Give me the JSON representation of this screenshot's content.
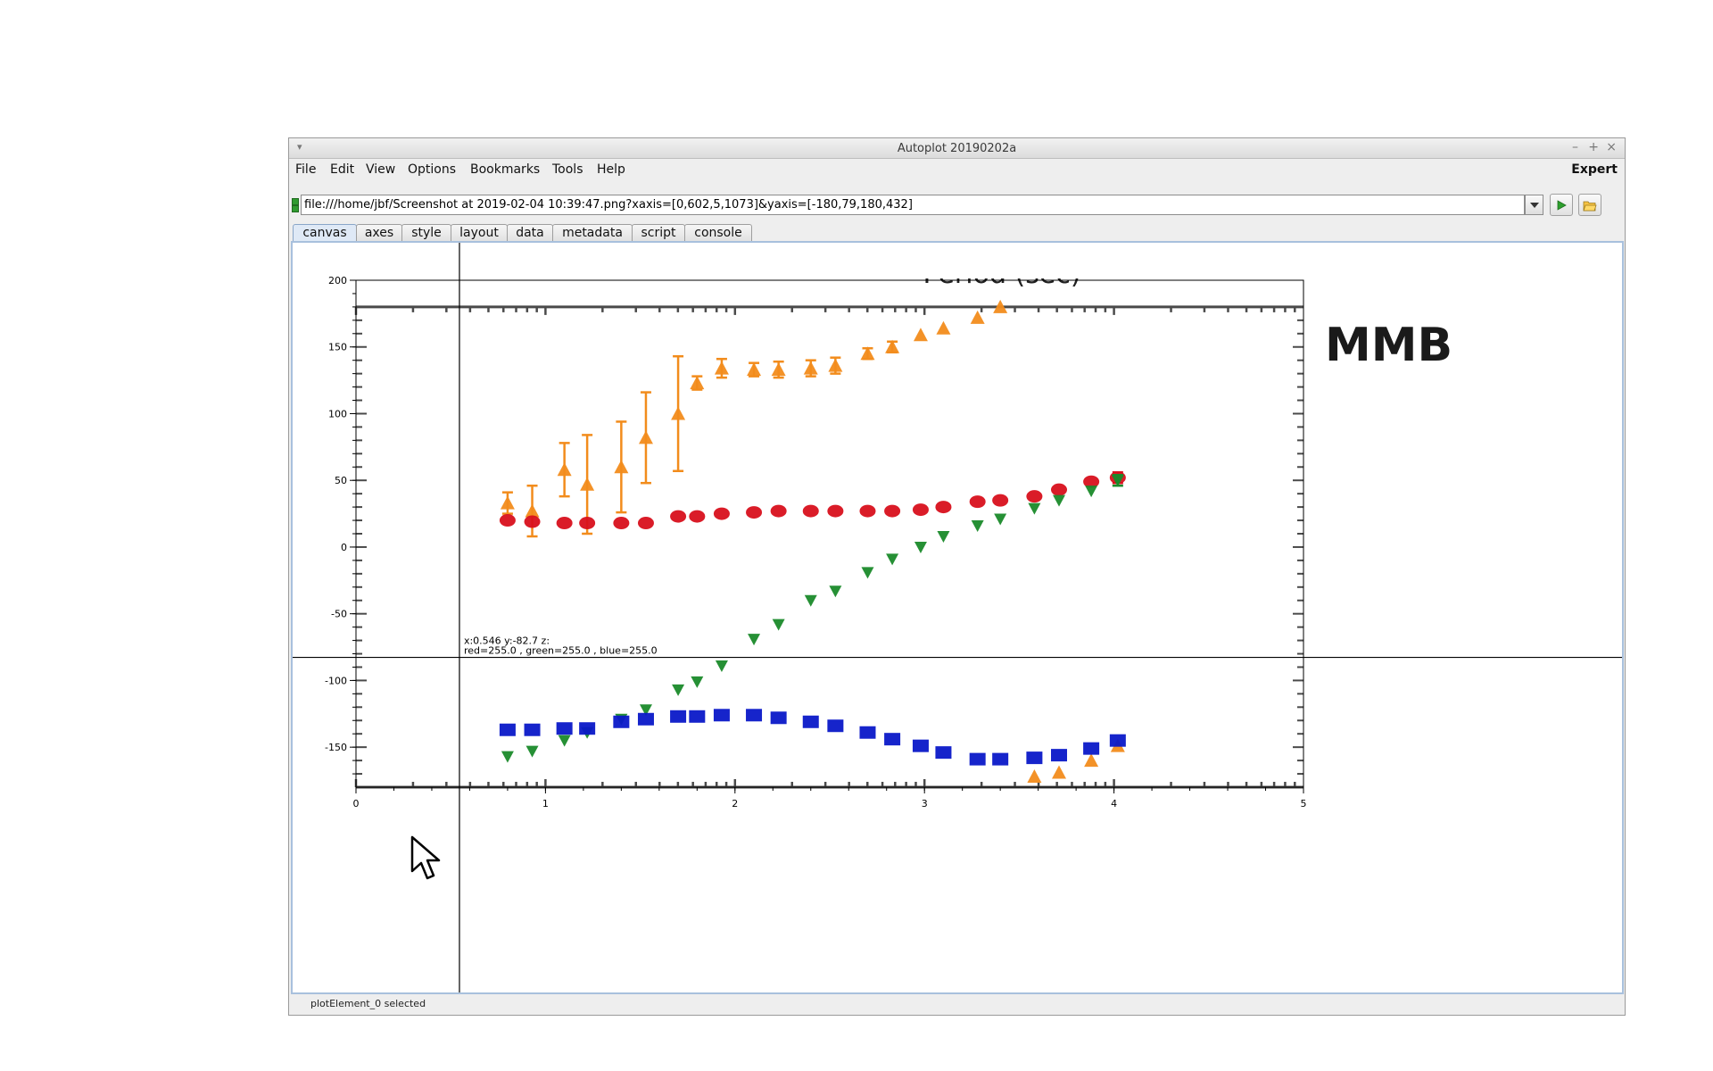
{
  "window": {
    "title": "Autoplot 20190202a"
  },
  "menubar": {
    "items": [
      "File",
      "Edit",
      "View",
      "Options",
      "Bookmarks",
      "Tools",
      "Help"
    ],
    "expert_label": "Expert"
  },
  "address": {
    "uri": "file:///home/jbf/Screenshot at 2019-02-04 10:39:47.png?xaxis=[0,602,5,1073]&yaxis=[-180,79,180,432]"
  },
  "tabs": [
    "canvas",
    "axes",
    "style",
    "layout",
    "data",
    "metadata",
    "script",
    "console"
  ],
  "active_tab": "canvas",
  "readout": {
    "line1": "x:0.546  y:-82.7  z:",
    "line2": "red=255.0 , green=255.0 , blue=255.0"
  },
  "status": {
    "text": "plotElement_0 selected"
  },
  "image_overlay": {
    "label": "MMB",
    "top_title_fragment": "Period (sec)"
  },
  "icons": [
    "app-menu-icon",
    "minimize-icon",
    "maximize-icon",
    "close-icon",
    "dropdown-arrow-icon",
    "play-icon",
    "open-folder-icon",
    "mouse-pointer-icon"
  ],
  "chart_data": {
    "type": "scatter",
    "xlim": [
      0,
      5
    ],
    "ylim": [
      -180,
      200
    ],
    "x_ticks": [
      "0",
      "1",
      "2",
      "3",
      "4",
      "5"
    ],
    "y_ticks": [
      "-150",
      "-100",
      "-50",
      "0",
      "50",
      "100",
      "150",
      "200"
    ],
    "crosshair": {
      "x": 0.546,
      "y": -82.7
    },
    "series": [
      {
        "color": "#f28c1c",
        "marker": "triangle-up",
        "x": [
          0.8,
          0.93,
          1.1,
          1.22,
          1.4,
          1.53,
          1.7,
          1.8,
          1.93,
          2.1,
          2.23,
          2.4,
          2.53,
          2.7,
          2.83,
          2.98,
          3.1,
          3.28,
          3.4,
          3.58,
          3.71,
          3.88,
          4.02
        ],
        "y": [
          33,
          27,
          58,
          47,
          60,
          82,
          100,
          123,
          134,
          133,
          133,
          134,
          136,
          145,
          150,
          159,
          164,
          172,
          180,
          -172,
          -169,
          -160,
          -149
        ],
        "err": [
          8,
          19,
          20,
          37,
          34,
          34,
          43,
          5,
          7,
          5,
          6,
          6,
          6,
          4,
          4,
          3,
          3,
          3,
          2,
          2,
          3,
          3,
          2
        ]
      },
      {
        "color": "#d8101c",
        "marker": "circle",
        "x": [
          0.8,
          0.93,
          1.1,
          1.22,
          1.4,
          1.53,
          1.7,
          1.8,
          1.93,
          2.1,
          2.23,
          2.4,
          2.53,
          2.7,
          2.83,
          2.98,
          3.1,
          3.28,
          3.4,
          3.58,
          3.71,
          3.88,
          4.02
        ],
        "y": [
          20,
          19,
          18,
          18,
          18,
          18,
          23,
          23,
          25,
          26,
          27,
          27,
          27,
          27,
          27,
          28,
          30,
          34,
          35,
          38,
          43,
          49,
          52
        ],
        "err": [
          2,
          2,
          2,
          2,
          2,
          2,
          2,
          2,
          2,
          2,
          2,
          2,
          2,
          2,
          2,
          2,
          2,
          2,
          2,
          2,
          3,
          3,
          4
        ]
      },
      {
        "color": "#1a8a2a",
        "marker": "triangle-down",
        "x": [
          0.8,
          0.93,
          1.1,
          1.22,
          1.4,
          1.53,
          1.7,
          1.8,
          1.93,
          2.1,
          2.23,
          2.4,
          2.53,
          2.7,
          2.83,
          2.98,
          3.1,
          3.28,
          3.4,
          3.58,
          3.71,
          3.88,
          4.02
        ],
        "y": [
          -157,
          -153,
          -145,
          -139,
          -129,
          -122,
          -107,
          -101,
          -89,
          -69,
          -58,
          -40,
          -33,
          -19,
          -9,
          0,
          8,
          16,
          21,
          29,
          35,
          42,
          50
        ],
        "err": [
          2,
          2,
          2,
          2,
          2,
          2,
          2,
          2,
          2,
          2,
          2,
          2,
          2,
          2,
          2,
          2,
          2,
          2,
          2,
          2,
          3,
          3,
          4
        ]
      },
      {
        "color": "#0a18c8",
        "marker": "square",
        "x": [
          0.8,
          0.93,
          1.1,
          1.22,
          1.4,
          1.53,
          1.7,
          1.8,
          1.93,
          2.1,
          2.23,
          2.4,
          2.53,
          2.7,
          2.83,
          2.98,
          3.1,
          3.28,
          3.4,
          3.58,
          3.71,
          3.88,
          4.02
        ],
        "y": [
          -137,
          -137,
          -136,
          -136,
          -131,
          -129,
          -127,
          -127,
          -126,
          -126,
          -128,
          -131,
          -134,
          -139,
          -144,
          -149,
          -154,
          -159,
          -159,
          -158,
          -156,
          -151,
          -145
        ],
        "err": [
          2,
          2,
          2,
          2,
          2,
          2,
          2,
          2,
          2,
          2,
          2,
          2,
          2,
          2,
          2,
          2,
          2,
          2,
          2,
          2,
          2,
          3,
          3
        ]
      }
    ]
  }
}
